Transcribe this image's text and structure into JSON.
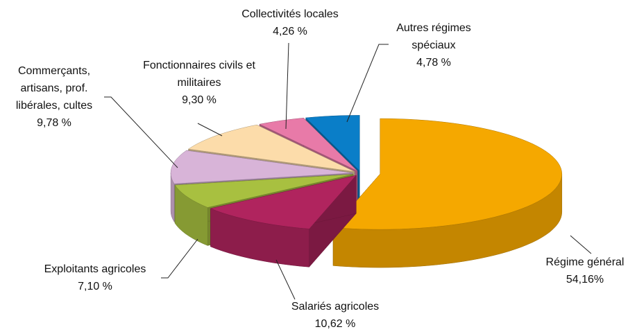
{
  "chart_data": {
    "type": "pie3d",
    "categories": [
      "Régime général",
      "Salariés agricoles",
      "Exploitants agricoles",
      "Commerçants, artisans, prof. libérales, cultes",
      "Fonctionnaires civils et militaires",
      "Collectivités locales",
      "Autres régimes spéciaux"
    ],
    "values": [
      54.16,
      10.62,
      7.1,
      9.78,
      9.3,
      4.26,
      4.78
    ],
    "value_labels": [
      "54,16%",
      "10,62 %",
      "7,10 %",
      "9,78 %",
      "9,30 %",
      "4,26 %",
      "4,78 %"
    ],
    "colors": [
      "#f5a800",
      "#b0245e",
      "#a8c040",
      "#d8b4d8",
      "#fcdcaa",
      "#e87aa8",
      "#0a7ec8"
    ]
  }
}
